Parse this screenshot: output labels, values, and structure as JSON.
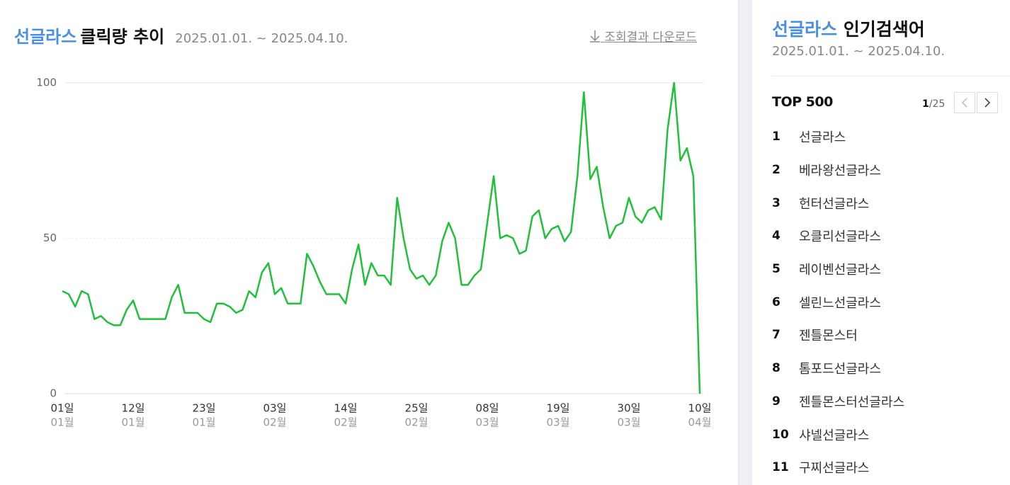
{
  "chart_data": {
    "type": "line",
    "title_keyword": "선글라스",
    "title": "클릭량 추이",
    "subtitle": "2025.01.01. ~ 2025.04.10.",
    "download": "조회결과 다운로드",
    "categories": [
      "01일",
      null,
      null,
      null,
      null,
      null,
      null,
      null,
      null,
      null,
      null,
      "12일",
      null,
      null,
      null,
      null,
      null,
      null,
      null,
      null,
      null,
      null,
      "23일",
      null,
      null,
      null,
      null,
      null,
      null,
      null,
      null,
      null,
      null,
      "03일",
      null,
      null,
      null,
      null,
      null,
      null,
      null,
      null,
      null,
      null,
      "14일",
      null,
      null,
      null,
      null,
      null,
      null,
      null,
      null,
      null,
      null,
      "25일",
      null,
      null,
      null,
      null,
      null,
      null,
      null,
      null,
      null,
      null,
      "08일",
      null,
      null,
      null,
      null,
      null,
      null,
      null,
      null,
      null,
      null,
      "19일",
      null,
      null,
      null,
      null,
      null,
      null,
      null,
      null,
      null,
      null,
      "30일",
      null,
      null,
      null,
      null,
      null,
      null,
      null,
      null,
      null,
      null,
      "10일"
    ],
    "category_months": [
      "01월",
      null,
      null,
      null,
      null,
      null,
      null,
      null,
      null,
      null,
      null,
      "01월",
      null,
      null,
      null,
      null,
      null,
      null,
      null,
      null,
      null,
      null,
      "01월",
      null,
      null,
      null,
      null,
      null,
      null,
      null,
      null,
      null,
      null,
      "02월",
      null,
      null,
      null,
      null,
      null,
      null,
      null,
      null,
      null,
      null,
      "02월",
      null,
      null,
      null,
      null,
      null,
      null,
      null,
      null,
      null,
      null,
      "02월",
      null,
      null,
      null,
      null,
      null,
      null,
      null,
      null,
      null,
      null,
      "03월",
      null,
      null,
      null,
      null,
      null,
      null,
      null,
      null,
      null,
      null,
      "03월",
      null,
      null,
      null,
      null,
      null,
      null,
      null,
      null,
      null,
      null,
      "03월",
      null,
      null,
      null,
      null,
      null,
      null,
      null,
      null,
      null,
      null,
      "04월"
    ],
    "values": [
      33,
      32,
      28,
      33,
      32,
      24,
      25,
      23,
      22,
      22,
      27,
      30,
      24,
      24,
      24,
      24,
      24,
      31,
      35,
      26,
      26,
      26,
      24,
      23,
      29,
      29,
      28,
      26,
      27,
      33,
      31,
      39,
      42,
      32,
      34,
      29,
      29,
      29,
      45,
      41,
      36,
      32,
      32,
      32,
      29,
      40,
      48,
      35,
      42,
      38,
      38,
      35,
      63,
      50,
      40,
      37,
      38,
      35,
      38,
      49,
      55,
      50,
      35,
      35,
      38,
      40,
      55,
      70,
      50,
      51,
      50,
      45,
      46,
      57,
      59,
      50,
      53,
      54,
      49,
      52,
      70,
      97,
      69,
      73,
      60,
      50,
      54,
      55,
      63,
      57,
      55,
      59,
      60,
      56,
      85,
      100,
      75,
      79,
      70,
      0
    ],
    "color": "#1fc13b",
    "ylim": [
      0,
      100
    ],
    "yticks": [
      0,
      50,
      100
    ],
    "grid": true
  },
  "sidebar": {
    "keyword": "선글라스",
    "title": "인기검색어",
    "period": "2025.01.01. ~ 2025.04.10.",
    "top_label": "TOP 500",
    "page": "1",
    "page_total": "/25",
    "items": [
      {
        "rank": 1,
        "term": "선글라스"
      },
      {
        "rank": 2,
        "term": "베라왕선글라스"
      },
      {
        "rank": 3,
        "term": "헌터선글라스"
      },
      {
        "rank": 4,
        "term": "오클리선글라스"
      },
      {
        "rank": 5,
        "term": "레이벤선글라스"
      },
      {
        "rank": 6,
        "term": "셀린느선글라스"
      },
      {
        "rank": 7,
        "term": "젠틀몬스터"
      },
      {
        "rank": 8,
        "term": "톰포드선글라스"
      },
      {
        "rank": 9,
        "term": "젠틀몬스터선글라스"
      },
      {
        "rank": 10,
        "term": "샤넬선글라스"
      },
      {
        "rank": 11,
        "term": "구찌선글라스"
      }
    ]
  }
}
